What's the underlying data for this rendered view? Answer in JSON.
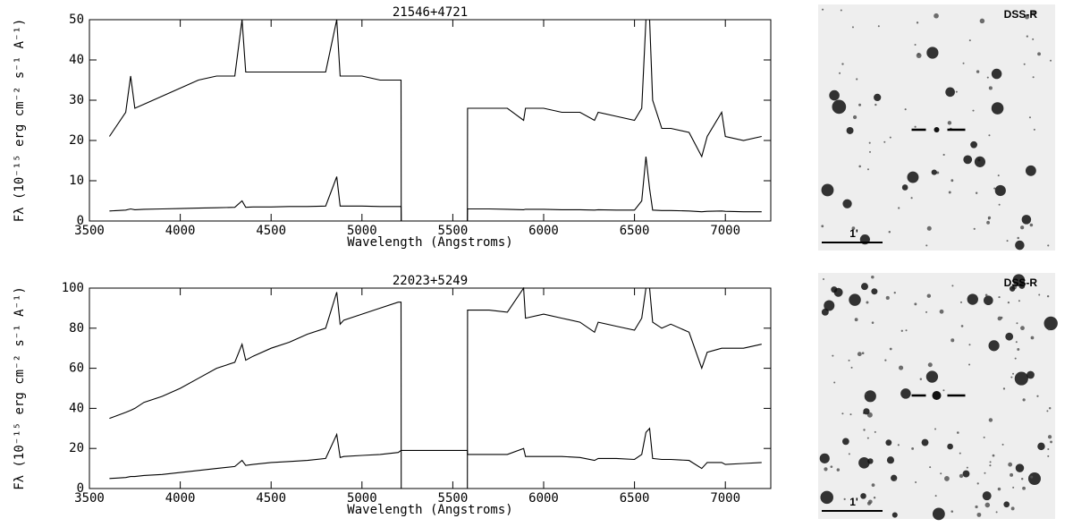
{
  "chart_data": [
    {
      "type": "line",
      "title": "21546+4721",
      "x_label": "Wavelength (Angstroms)",
      "y_label": "Fλ (10⁻¹⁵ erg cm⁻² s⁻¹ A⁻¹)",
      "xlim": [
        3500,
        7250
      ],
      "ylim": [
        0,
        50
      ],
      "xticks": [
        3500,
        4000,
        4500,
        5000,
        5500,
        6000,
        6500,
        7000
      ],
      "yticks": [
        0,
        10,
        20,
        30,
        40,
        50
      ],
      "grid": false,
      "x": [
        3610,
        3700,
        3727,
        3750,
        3800,
        3900,
        4000,
        4100,
        4200,
        4300,
        4340,
        4360,
        4400,
        4500,
        4600,
        4700,
        4800,
        4861,
        4880,
        4900,
        5000,
        5100,
        5200,
        5215,
        5216,
        5580,
        5581,
        5700,
        5800,
        5890,
        5900,
        6000,
        6100,
        6200,
        6280,
        6300,
        6400,
        6500,
        6540,
        6563,
        6583,
        6600,
        6650,
        6700,
        6800,
        6870,
        6900,
        6980,
        7000,
        7100,
        7200
      ],
      "series": [
        {
          "color": "#000000",
          "values": [
            21,
            27,
            36,
            28,
            29,
            31,
            33,
            35,
            36,
            36,
            50,
            37,
            37,
            37,
            37,
            37,
            37,
            50,
            36,
            36,
            36,
            35,
            35,
            35,
            0,
            0,
            28,
            28,
            28,
            25,
            28,
            28,
            27,
            27,
            25,
            27,
            26,
            25,
            28,
            50,
            50,
            30,
            23,
            23,
            22,
            16,
            21,
            27,
            21,
            20,
            21
          ]
        },
        {
          "color": "#000000",
          "values": [
            2.5,
            2.7,
            3,
            2.8,
            2.9,
            3,
            3.1,
            3.2,
            3.3,
            3.4,
            5,
            3.4,
            3.5,
            3.5,
            3.6,
            3.6,
            3.7,
            11,
            3.7,
            3.7,
            3.7,
            3.6,
            3.6,
            3.6,
            0,
            0,
            3,
            3,
            2.9,
            2.8,
            2.9,
            2.9,
            2.8,
            2.8,
            2.7,
            2.8,
            2.7,
            2.7,
            5,
            16,
            8,
            2.7,
            2.6,
            2.6,
            2.5,
            2.3,
            2.4,
            2.5,
            2.4,
            2.3,
            2.3
          ]
        }
      ]
    },
    {
      "type": "line",
      "title": "22023+5249",
      "x_label": "Wavelength (Angstroms)",
      "y_label": "Fλ (10⁻¹⁵ erg cm⁻² s⁻¹ A⁻¹)",
      "xlim": [
        3500,
        7250
      ],
      "ylim": [
        0,
        100
      ],
      "xticks": [
        3500,
        4000,
        4500,
        5000,
        5500,
        6000,
        6500,
        7000
      ],
      "yticks": [
        0,
        20,
        40,
        60,
        80,
        100
      ],
      "grid": false,
      "x": [
        3610,
        3700,
        3727,
        3750,
        3800,
        3900,
        4000,
        4100,
        4200,
        4300,
        4340,
        4360,
        4400,
        4500,
        4600,
        4700,
        4800,
        4861,
        4880,
        4900,
        5000,
        5100,
        5200,
        5215,
        5216,
        5580,
        5581,
        5700,
        5800,
        5890,
        5900,
        6000,
        6100,
        6200,
        6280,
        6300,
        6400,
        6500,
        6540,
        6563,
        6583,
        6600,
        6650,
        6700,
        6800,
        6870,
        6900,
        6980,
        7000,
        7100,
        7200
      ],
      "series": [
        {
          "color": "#000000",
          "values": [
            35,
            38,
            39,
            40,
            43,
            46,
            50,
            55,
            60,
            63,
            72,
            64,
            66,
            70,
            73,
            77,
            80,
            98,
            82,
            84,
            87,
            90,
            93,
            93,
            0,
            0,
            89,
            89,
            88,
            100,
            85,
            87,
            85,
            83,
            78,
            83,
            81,
            79,
            85,
            100,
            100,
            83,
            80,
            82,
            78,
            60,
            68,
            70,
            70,
            70,
            72
          ]
        },
        {
          "color": "#000000",
          "values": [
            5,
            5.5,
            6,
            6,
            6.5,
            7,
            8,
            9,
            10,
            11,
            14,
            11.5,
            12,
            13,
            13.5,
            14,
            15,
            27,
            15.5,
            16,
            16.5,
            17,
            18,
            19,
            19,
            19,
            17,
            17,
            17,
            20,
            16,
            16,
            16,
            15.5,
            14,
            15,
            15,
            14.5,
            17,
            28,
            30,
            15,
            14.5,
            14.5,
            14,
            10,
            13,
            13,
            12,
            12.5,
            13
          ]
        }
      ]
    }
  ],
  "images": [
    {
      "survey": "DSS-R",
      "scale": "1'"
    },
    {
      "survey": "DSS-R",
      "scale": "1'"
    }
  ]
}
